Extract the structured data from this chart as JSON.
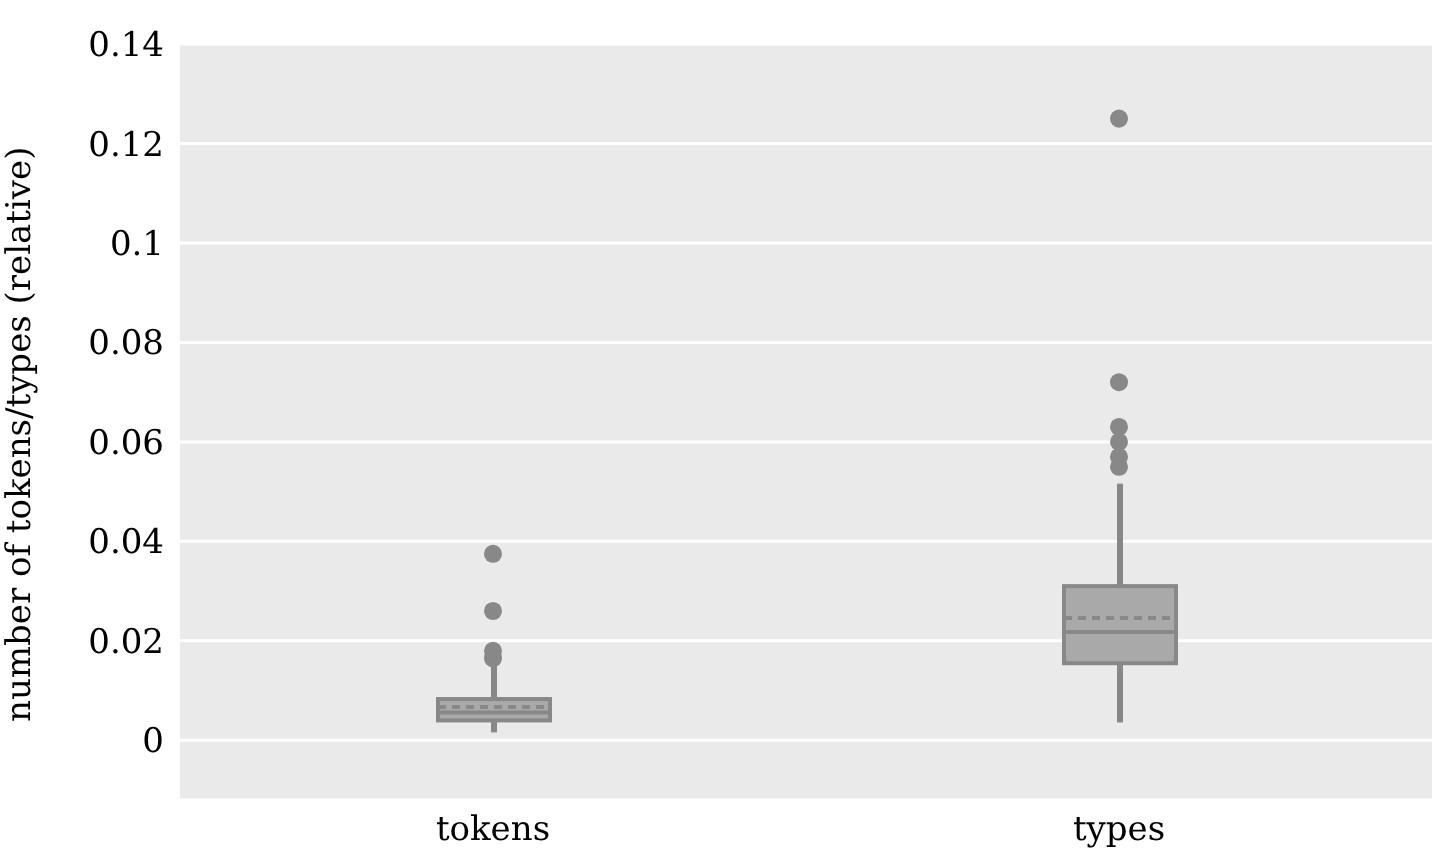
{
  "chart_data": {
    "type": "box",
    "ylabel": "number of tokens/types (relative)",
    "categories": [
      "tokens",
      "types"
    ],
    "series": [
      {
        "color": "#888888",
        "boxes": [
          {
            "low": 0.0016,
            "q1": 0.004,
            "median": 0.0056,
            "q3": 0.0083,
            "high": 0.015,
            "mean": 0.0067,
            "outliers": [
              0.0165,
              0.018,
              0.026,
              0.0375
            ]
          },
          {
            "low": 0.0036,
            "q1": 0.0155,
            "median": 0.0218,
            "q3": 0.031,
            "high": 0.0516,
            "mean": 0.0246,
            "outliers": [
              0.055,
              0.057,
              0.06,
              0.063,
              0.072,
              0.125
            ]
          }
        ]
      }
    ],
    "ylim": [
      -0.012,
      0.14
    ],
    "yticks": [
      0,
      0.02,
      0.04,
      0.06,
      0.08,
      0.1,
      0.12,
      0.14
    ],
    "grid": "y",
    "marker": "circle"
  }
}
